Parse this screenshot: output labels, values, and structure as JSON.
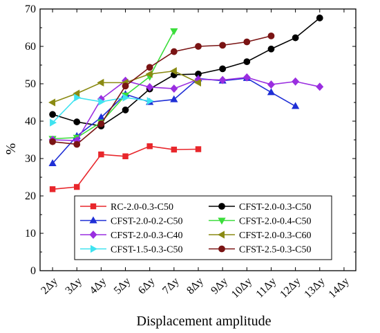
{
  "chart_data": {
    "type": "line",
    "title": "",
    "xlabel": "Displacement amplitude",
    "ylabel": "%",
    "categories": [
      "2Δy",
      "3Δy",
      "4Δy",
      "5Δy",
      "6Δy",
      "7Δy",
      "8Δy",
      "9Δy",
      "10Δy",
      "11Δy",
      "12Δy",
      "13Δy",
      "14Δy"
    ],
    "x_index_range": [
      2,
      14
    ],
    "ylim": [
      0,
      70
    ],
    "yticks": [
      0,
      10,
      20,
      30,
      40,
      50,
      60,
      70
    ],
    "grid": false,
    "legend_position": "bottom-center",
    "series": [
      {
        "name": "RC-2.0-0.3-C50",
        "color": "#e8262b",
        "marker": "square",
        "x": [
          2,
          3,
          4,
          5,
          6,
          7,
          8
        ],
        "values": [
          21.8,
          22.4,
          31.1,
          30.6,
          33.3,
          32.4,
          32.5
        ]
      },
      {
        "name": "CFST-2.0-0.3-C50",
        "color": "#000000",
        "marker": "circle",
        "x": [
          2,
          3,
          4,
          5,
          6,
          7,
          8,
          9,
          10,
          11,
          12,
          13
        ],
        "values": [
          41.8,
          39.8,
          38.7,
          43.0,
          48.6,
          52.4,
          52.6,
          54.0,
          55.9,
          59.3,
          62.3,
          67.6
        ]
      },
      {
        "name": "CFST-2.0-0.2-C50",
        "color": "#1f2fd6",
        "marker": "triangle",
        "x": [
          2,
          3,
          4,
          5,
          6,
          7,
          8,
          9,
          10,
          11,
          12
        ],
        "values": [
          28.7,
          36.0,
          41.0,
          47.2,
          45.1,
          45.8,
          51.4,
          50.8,
          51.5,
          47.7,
          44.0
        ]
      },
      {
        "name": "CFST-2.0-0.4-C50",
        "color": "#3bdd3b",
        "marker": "triangle-down",
        "x": [
          2,
          3,
          4,
          5,
          6,
          7
        ],
        "values": [
          35.3,
          35.6,
          39.7,
          46.9,
          51.9,
          64.1
        ]
      },
      {
        "name": "CFST-2.0-0.3-C40",
        "color": "#9a2ee0",
        "marker": "diamond",
        "x": [
          2,
          3,
          4,
          5,
          6,
          7,
          8,
          9,
          10,
          11,
          12,
          13
        ],
        "values": [
          35.0,
          34.8,
          45.9,
          50.8,
          49.1,
          48.7,
          51.2,
          51.0,
          51.7,
          49.8,
          50.6,
          49.2
        ]
      },
      {
        "name": "CFST-2.0-0.3-C60",
        "color": "#8a8a12",
        "marker": "triangle-left",
        "x": [
          2,
          3,
          4,
          5,
          6,
          7,
          8
        ],
        "values": [
          45.0,
          47.4,
          50.3,
          50.3,
          52.6,
          53.4,
          50.3
        ]
      },
      {
        "name": "CFST-1.5-0.3-C50",
        "color": "#3fe3f0",
        "marker": "triangle-right",
        "x": [
          2,
          3,
          4,
          5,
          6
        ],
        "values": [
          39.6,
          46.3,
          45.2,
          46.3,
          45.4
        ]
      },
      {
        "name": "CFST-2.5-0.3-C50",
        "color": "#7a1414",
        "marker": "circle",
        "x": [
          2,
          3,
          4,
          5,
          6,
          7,
          8,
          9,
          10,
          11
        ],
        "values": [
          34.5,
          33.8,
          39.3,
          49.4,
          54.4,
          58.6,
          60.0,
          60.3,
          61.2,
          62.8
        ]
      }
    ]
  }
}
